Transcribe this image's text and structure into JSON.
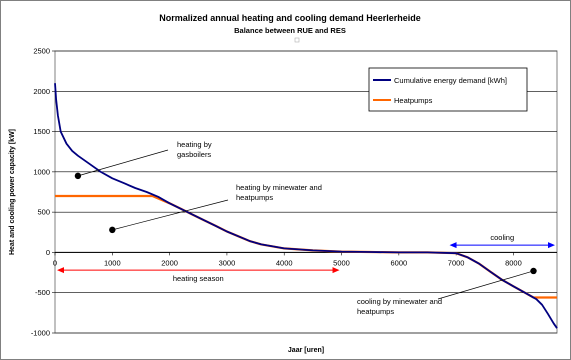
{
  "chart_data": {
    "type": "line",
    "title": "Normalized annual heating and cooling demand Heerlerheide",
    "subtitle": "Balance between RUE and RES",
    "xlabel": "Jaar [uren]",
    "ylabel": "Heat and cooling power capacity [kW]",
    "xlim": [
      0,
      8760
    ],
    "ylim": [
      -1000,
      2500
    ],
    "x_ticks": [
      "0",
      "1000",
      "2000",
      "3000",
      "4000",
      "5000",
      "6000",
      "7000",
      "8000"
    ],
    "y_ticks": [
      "2500",
      "2000",
      "1500",
      "1000",
      "500",
      "0",
      "-500",
      "-1000"
    ],
    "grid": "horizontal",
    "legend": {
      "placement": "top-right",
      "entries": [
        {
          "name": "Cumulative energy demand [kWh]",
          "color": "#000080"
        },
        {
          "name": "Heatpumps",
          "color": "#ff6600"
        }
      ]
    },
    "series": [
      {
        "name": "Cumulative energy demand [kWh]",
        "color": "#000080",
        "x": [
          0,
          20,
          50,
          100,
          200,
          300,
          400,
          600,
          800,
          1000,
          1200,
          1400,
          1600,
          1800,
          2000,
          2200,
          2400,
          2600,
          2800,
          3000,
          3200,
          3400,
          3600,
          3800,
          4000,
          4500,
          5000,
          5500,
          6000,
          6500,
          7000,
          7200,
          7400,
          7600,
          7800,
          8000,
          8200,
          8400,
          8500,
          8600,
          8700,
          8760
        ],
        "y": [
          2100,
          1900,
          1700,
          1500,
          1350,
          1260,
          1200,
          1100,
          1000,
          920,
          860,
          800,
          750,
          690,
          610,
          540,
          470,
          400,
          330,
          260,
          200,
          140,
          100,
          75,
          50,
          25,
          10,
          5,
          0,
          0,
          -10,
          -60,
          -140,
          -240,
          -340,
          -420,
          -500,
          -580,
          -650,
          -760,
          -880,
          -940
        ]
      },
      {
        "name": "Heatpumps",
        "color": "#ff6600",
        "x": [
          0,
          1700,
          2000,
          2200,
          2400,
          2600,
          2800,
          3000,
          3200,
          3400,
          3600,
          3800,
          4000,
          4500,
          5000,
          5500,
          6000,
          6500,
          7000,
          7200,
          7400,
          7600,
          7800,
          8000,
          8200,
          8350,
          8500,
          8760
        ],
        "y": [
          700,
          700,
          610,
          540,
          470,
          400,
          330,
          260,
          200,
          140,
          100,
          75,
          50,
          25,
          10,
          5,
          0,
          0,
          -10,
          -60,
          -140,
          -240,
          -340,
          -420,
          -500,
          -560,
          -560,
          -560
        ]
      }
    ],
    "annotations": [
      {
        "lines": [
          "heating by",
          "gasboilers"
        ],
        "point": [
          400,
          950
        ]
      },
      {
        "lines": [
          "heating by minewater and",
          "heatpumps"
        ],
        "point": [
          1000,
          280
        ]
      },
      {
        "lines": [
          "cooling by minewater and",
          "heatpumps"
        ],
        "point": [
          8350,
          -230
        ]
      }
    ],
    "ranges": [
      {
        "label": "heating season",
        "from": 0,
        "to": 5000,
        "y": -220,
        "color": "#ff0000"
      },
      {
        "label": "cooling",
        "from": 6850,
        "to": 8760,
        "y": 90,
        "color": "#0000ff"
      }
    ]
  }
}
